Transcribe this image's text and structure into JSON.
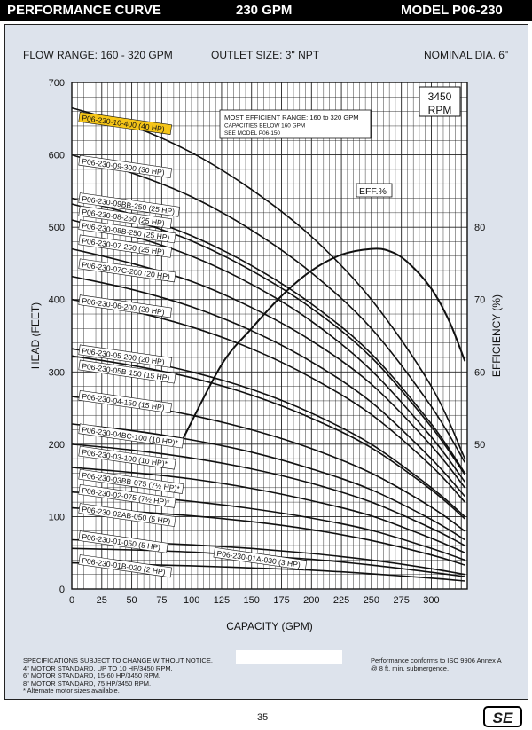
{
  "header": {
    "left": "PERFORMANCE CURVE",
    "center": "230 GPM",
    "right": "MODEL  P06-230"
  },
  "subheader": {
    "flow_range": "FLOW RANGE: 160 - 320 GPM",
    "outlet": "OUTLET SIZE: 3\" NPT",
    "diameter": "NOMINAL DIA. 6\""
  },
  "footer": {
    "specs": [
      "SPECIFICATIONS SUBJECT TO CHANGE WITHOUT NOTICE.",
      "4\" MOTOR STANDARD, UP TO 10 HP/3450 RPM.",
      "6\" MOTOR STANDARD, 15-60 HP/3450 RPM.",
      "8\" MOTOR STANDARD, 75 HP/3450 RPM.",
      "* Alternate motor sizes available."
    ],
    "conformance": [
      "Performance conforms to ISO 9906 Annex A",
      "@ 8 ft. min. submergence."
    ],
    "page_number": "35",
    "logo": "SE"
  },
  "chart_data": {
    "type": "line",
    "xlabel": "CAPACITY (GPM)",
    "ylabel": "HEAD (FEET)",
    "y2label": "EFFICIENCY (%)",
    "xlim": [
      0,
      330
    ],
    "ylim": [
      0,
      700
    ],
    "y2lim": [
      30,
      100
    ],
    "xticks": [
      0,
      25,
      50,
      75,
      100,
      125,
      150,
      175,
      200,
      225,
      250,
      275,
      300
    ],
    "yticks": [
      0,
      100,
      200,
      300,
      400,
      500,
      600,
      700
    ],
    "y2ticks": [
      50,
      60,
      70,
      80
    ],
    "grid": true,
    "rpm": "3450\nRPM",
    "note": [
      "MOST EFFICIENT RANGE: 160 to 320 GPM",
      "CAPACITIES BELOW 160 GPM",
      "SEE  MODEL P06-150"
    ],
    "highlight_color": "#f5c518",
    "series": [
      {
        "name": "P06-230-10-400 (40 HP)",
        "x": [
          0,
          50,
          100,
          150,
          200,
          250,
          300,
          328
        ],
        "y": [
          665,
          640,
          603,
          552,
          487,
          400,
          280,
          180
        ],
        "label_y": 648,
        "highlight": true
      },
      {
        "name": "P06-230-09-300 (30 HP)",
        "x": [
          0,
          50,
          100,
          150,
          200,
          250,
          300,
          328
        ],
        "y": [
          600,
          575,
          542,
          496,
          437,
          360,
          252,
          175
        ],
        "label_y": 588
      },
      {
        "name": "P06-230-09BB-250 (25 HP)",
        "x": [
          0,
          50,
          100,
          150,
          200,
          250,
          300,
          328
        ],
        "y": [
          540,
          518,
          488,
          447,
          394,
          325,
          228,
          160
        ],
        "label_y": 536
      },
      {
        "name": "P06-230-08-250 (25 HP)",
        "x": [
          0,
          50,
          100,
          150,
          200,
          250,
          300,
          328
        ],
        "y": [
          532,
          510,
          481,
          440,
          388,
          320,
          224,
          158
        ],
        "label_y": 518
      },
      {
        "name": "P06-230-08B-250 (25 HP)",
        "x": [
          0,
          50,
          100,
          150,
          200,
          250,
          300,
          328
        ],
        "y": [
          510,
          488,
          460,
          421,
          370,
          302,
          210,
          148
        ],
        "label_y": 499
      },
      {
        "name": "P06-230-07-250 (25 HP)",
        "x": [
          0,
          50,
          100,
          150,
          200,
          250,
          300,
          328
        ],
        "y": [
          470,
          450,
          425,
          389,
          343,
          283,
          198,
          140
        ],
        "label_y": 478
      },
      {
        "name": "P06-230-07C-200 (20 HP)",
        "x": [
          0,
          50,
          100,
          150,
          200,
          250,
          300,
          328
        ],
        "y": [
          432,
          414,
          390,
          357,
          314,
          258,
          180,
          128
        ],
        "label_y": 445
      },
      {
        "name": "P06-230-06-200 (20 HP)",
        "x": [
          0,
          50,
          100,
          150,
          200,
          250,
          300,
          328
        ],
        "y": [
          400,
          384,
          362,
          332,
          292,
          241,
          170,
          120
        ],
        "label_y": 395
      },
      {
        "name": "P06-230-05-200 (20 HP)",
        "x": [
          0,
          50,
          100,
          150,
          200,
          250,
          300,
          328
        ],
        "y": [
          332,
          318,
          300,
          276,
          243,
          200,
          140,
          100
        ],
        "label_y": 326
      },
      {
        "name": "P06-230-05B-150 (15 HP)",
        "x": [
          0,
          50,
          100,
          150,
          200,
          250,
          300,
          328
        ],
        "y": [
          322,
          309,
          292,
          268,
          236,
          195,
          137,
          97
        ],
        "label_y": 305
      },
      {
        "name": "P06-230-04-150 (15 HP)",
        "x": [
          0,
          50,
          100,
          150,
          200,
          250,
          300,
          328
        ],
        "y": [
          266,
          255,
          240,
          220,
          194,
          160,
          113,
          80
        ],
        "label_y": 263
      },
      {
        "name": "P06-230-04BC-100 (10 HP)*",
        "x": [
          0,
          50,
          100,
          150,
          200,
          250,
          300,
          328
        ],
        "y": [
          228,
          219,
          206,
          189,
          166,
          137,
          96,
          68
        ],
        "label_y": 217
      },
      {
        "name": "P06-230-03-100 (10 HP)*",
        "x": [
          0,
          50,
          100,
          150,
          200,
          250,
          300,
          328
        ],
        "y": [
          200,
          192,
          181,
          166,
          146,
          120,
          84,
          60
        ],
        "label_y": 186
      },
      {
        "name": "P06-230-03BB-075 (7½ HP)*",
        "x": [
          0,
          50,
          100,
          150,
          200,
          250,
          300,
          328
        ],
        "y": [
          168,
          161,
          152,
          139,
          122,
          101,
          70,
          50
        ],
        "label_y": 154
      },
      {
        "name": "P06-230-02-075 (7½ HP)*",
        "x": [
          0,
          50,
          100,
          150,
          200,
          250,
          300,
          328
        ],
        "y": [
          134,
          129,
          121,
          111,
          98,
          81,
          56,
          40
        ],
        "label_y": 133
      },
      {
        "name": "P06-230-02AB-050 (5 HP)",
        "x": [
          0,
          50,
          100,
          150,
          200,
          250,
          300,
          328
        ],
        "y": [
          112,
          107,
          101,
          93,
          82,
          67,
          47,
          33
        ],
        "label_y": 107
      },
      {
        "name": "P06-230-01-050 (5 HP)",
        "x": [
          0,
          50,
          100,
          150,
          200,
          250,
          300,
          328
        ],
        "y": [
          68,
          65,
          61,
          56,
          49,
          40,
          28,
          20
        ],
        "label_y": 69
      },
      {
        "name": "P06-230-01A-030 (3 HP)",
        "x": [
          0,
          50,
          100,
          150,
          200,
          250,
          300,
          328
        ],
        "y": [
          56,
          54,
          51,
          46,
          41,
          33,
          23,
          17
        ],
        "label_y": 46,
        "label_x": 120
      },
      {
        "name": "P06-230-01B-020 (2 HP)",
        "x": [
          0,
          50,
          100,
          150,
          200,
          250,
          300,
          328
        ],
        "y": [
          36,
          34,
          32,
          29,
          26,
          21,
          15,
          11
        ],
        "label_y": 36
      }
    ],
    "efficiency": {
      "name": "EFF.%",
      "x": [
        92,
        125,
        150,
        175,
        200,
        225,
        250,
        265,
        280,
        300,
        315,
        328
      ],
      "y": [
        50.5,
        61,
        66,
        70.5,
        74,
        76.2,
        77,
        76.7,
        75.2,
        71.5,
        67,
        61.5
      ]
    }
  }
}
